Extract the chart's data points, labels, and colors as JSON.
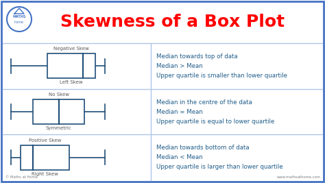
{
  "title": "Skewness of a Box Plot",
  "title_color": "#FF0000",
  "background_color": "#FFFFFF",
  "border_color": "#4472C4",
  "box_color": "#1F4E79",
  "text_color": "#1F5C8A",
  "label_color": "#595959",
  "divider_color": "#AEC6E8",
  "rows": [
    {
      "skew_label": "Negative Skew",
      "sub_label": "Left Skew",
      "wl": 0.04,
      "q1": 0.3,
      "med": 0.56,
      "q3": 0.65,
      "wr": 0.72,
      "descriptions": [
        "Median towards top of data",
        "Median > Mean",
        "Upper quartile is smaller than lower quartile"
      ]
    },
    {
      "skew_label": "No Skew",
      "sub_label": "Symmetric",
      "wl": 0.04,
      "q1": 0.2,
      "med": 0.385,
      "q3": 0.57,
      "wr": 0.72,
      "descriptions": [
        "Median in the centre of the data",
        "Median = Mean",
        "Upper quartile is equal to lower quartile"
      ]
    },
    {
      "skew_label": "Positive Skew",
      "sub_label": "Right Skew",
      "wl": 0.04,
      "q1": 0.11,
      "med": 0.2,
      "q3": 0.46,
      "wr": 0.72,
      "descriptions": [
        "Median towards bottom of data",
        "Median < Mean",
        "Upper quartile is larger than lower quartile"
      ]
    }
  ],
  "logo_text": "© Maths at Home",
  "website_text": "www.mathsathome.com"
}
